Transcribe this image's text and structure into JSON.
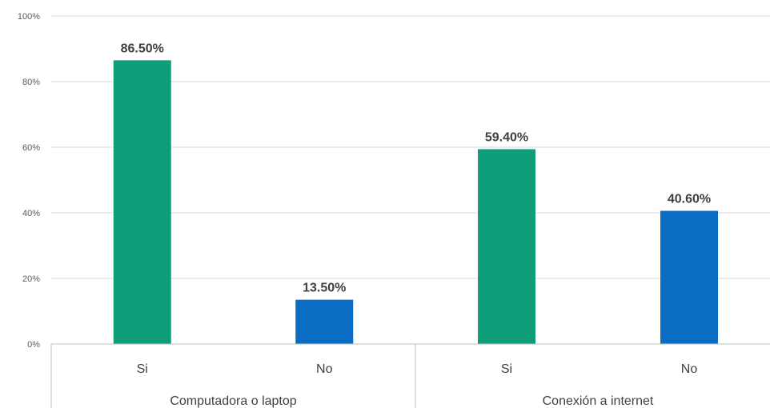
{
  "chart_data": {
    "type": "bar",
    "title": "",
    "xlabel": "",
    "ylabel": "",
    "ylim": [
      0,
      100
    ],
    "y_ticks": [
      0,
      20,
      40,
      60,
      80,
      100
    ],
    "y_tick_labels": [
      "0%",
      "20%",
      "40%",
      "60%",
      "80%",
      "100%"
    ],
    "grid": true,
    "legend": "none",
    "groups": [
      {
        "name": "Computadora o laptop",
        "bars": [
          {
            "category": "Si",
            "value": 86.5,
            "label": "86.50%",
            "color": "#0e9e7a"
          },
          {
            "category": "No",
            "value": 13.5,
            "label": "13.50%",
            "color": "#0b6cc4"
          }
        ]
      },
      {
        "name": "Conexión a internet",
        "bars": [
          {
            "category": "Si",
            "value": 59.4,
            "label": "59.40%",
            "color": "#0e9e7a"
          },
          {
            "category": "No",
            "value": 40.6,
            "label": "40.60%",
            "color": "#0b6cc4"
          }
        ]
      }
    ]
  }
}
